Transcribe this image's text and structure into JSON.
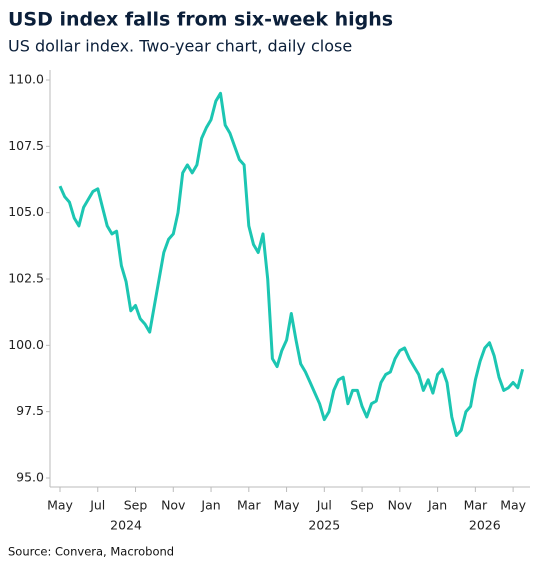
{
  "chart_data": {
    "type": "line",
    "title": "USD index falls from six-week highs",
    "subtitle": "US dollar index. Two-year chart, daily close",
    "source": "Source: Convera, Macrobond",
    "categories": [
      "May",
      null,
      null,
      null,
      null,
      null,
      null,
      null,
      "Jul",
      null,
      null,
      null,
      null,
      null,
      null,
      null,
      "Sep",
      null,
      null,
      null,
      null,
      null,
      null,
      null,
      "Nov",
      null,
      null,
      null,
      null,
      null,
      null,
      null,
      "Jan",
      null,
      null,
      null,
      null,
      null,
      null,
      null,
      "Mar",
      null,
      null,
      null,
      null,
      null,
      null,
      null,
      "May",
      null,
      null,
      null,
      null,
      null,
      null,
      null,
      "Jul",
      null,
      null,
      null,
      null,
      null,
      null,
      null,
      "Sep",
      null,
      null,
      null,
      null,
      null,
      null,
      null,
      "Nov",
      null,
      null,
      null,
      null,
      null,
      null,
      null,
      "Jan",
      null,
      null,
      null,
      null,
      null,
      null,
      null,
      "Mar",
      null,
      null,
      null,
      null,
      null,
      null,
      null,
      "May",
      null,
      null
    ],
    "year_labels": [
      "2024",
      "2025",
      "2026"
    ],
    "series": [
      {
        "name": "US dollar index",
        "color": "#1cc6b2",
        "values": [
          106,
          105.6,
          105.4,
          104.8,
          104.5,
          105.2,
          105.5,
          105.8,
          105.9,
          105.2,
          104.5,
          104.2,
          104.3,
          103,
          102.4,
          101.3,
          101.5,
          101.0,
          100.8,
          100.5,
          101.5,
          102.5,
          103.5,
          104,
          104.2,
          105,
          106.5,
          106.8,
          106.5,
          106.8,
          107.8,
          108.2,
          108.5,
          109.2,
          109.5,
          108.3,
          108,
          107.5,
          107,
          106.8,
          104.5,
          103.8,
          103.5,
          104.2,
          102.5,
          99.5,
          99.2,
          99.8,
          100.2,
          101.2,
          100.2,
          99.3,
          99,
          98.6,
          98.2,
          97.8,
          97.2,
          97.5,
          98.3,
          98.7,
          98.8,
          97.8,
          98.3,
          98.3,
          97.7,
          97.3,
          97.8,
          97.9,
          98.6,
          98.9,
          99.0,
          99.5,
          99.8,
          99.9,
          99.5,
          99.2,
          98.9,
          98.3,
          98.7,
          98.2,
          98.9,
          99.1,
          98.6,
          97.3,
          96.6,
          96.8,
          97.5,
          97.7,
          98.7,
          99.4,
          99.9,
          100.1,
          99.6,
          98.8,
          98.3,
          98.4,
          98.6,
          98.4,
          99.1
        ]
      }
    ],
    "ylim": [
      95,
      110
    ],
    "yticks": [
      {
        "value": 95,
        "label": "95.0"
      },
      {
        "value": 97.5,
        "label": "97.5"
      },
      {
        "value": 100,
        "label": "100.0"
      },
      {
        "value": 102.5,
        "label": "102.5"
      },
      {
        "value": 105,
        "label": "105.0"
      },
      {
        "value": 107.5,
        "label": "107.5"
      },
      {
        "value": 110,
        "label": "110.0"
      }
    ],
    "grid": false
  }
}
